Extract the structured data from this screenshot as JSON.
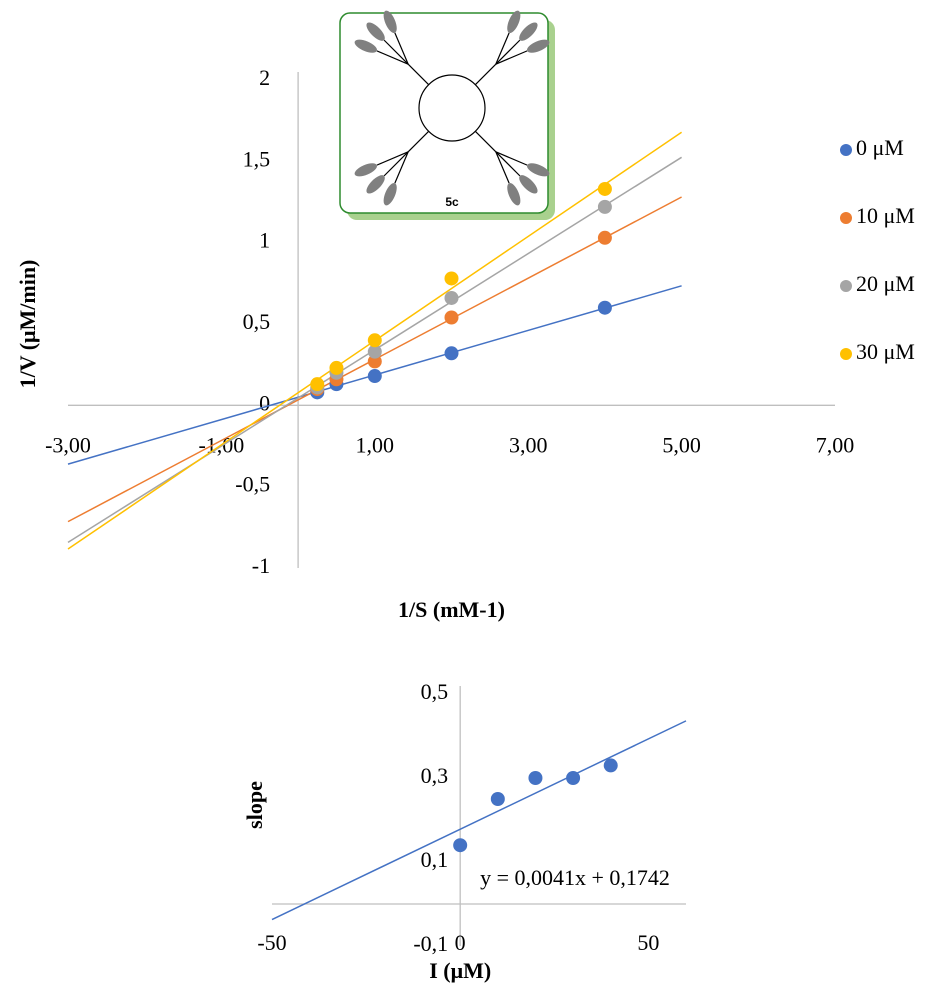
{
  "chart_data": [
    {
      "type": "scatter",
      "inset_label": "5c",
      "x": [
        0.25,
        0.5,
        1,
        2,
        4
      ],
      "series": [
        {
          "name": "0 μM",
          "color": "#4472c4",
          "values": [
            0.08,
            0.13,
            0.18,
            0.32,
            0.6
          ]
        },
        {
          "name": "10 μM",
          "color": "#ed7d31",
          "values": [
            0.1,
            0.16,
            0.27,
            0.54,
            1.03
          ]
        },
        {
          "name": "20 μM",
          "color": "#a5a5a5",
          "values": [
            0.11,
            0.2,
            0.33,
            0.66,
            1.22
          ]
        },
        {
          "name": "30 μM",
          "color": "#ffc000",
          "values": [
            0.13,
            0.23,
            0.4,
            0.78,
            1.33
          ]
        }
      ],
      "xlim": [
        -3,
        7
      ],
      "xticks": [
        {
          "value": -3,
          "label": "-3,00"
        },
        {
          "value": -1,
          "label": "-1,00"
        },
        {
          "value": 1,
          "label": "1,00"
        },
        {
          "value": 3,
          "label": "3,00"
        },
        {
          "value": 5,
          "label": "5,00"
        },
        {
          "value": 7,
          "label": "7,00"
        }
      ],
      "ylim": [
        -1,
        2
      ],
      "yticks": [
        -1,
        {
          "value": -0.5,
          "label": "-0,5"
        },
        0,
        {
          "value": 0.5,
          "label": "0,5"
        },
        1,
        {
          "value": 1.5,
          "label": "1,5"
        },
        2
      ],
      "x_label": "1/S (mM-1)",
      "y_label": "1/V (μM/min)",
      "trendline": true,
      "trendline_x": [
        -3,
        5
      ],
      "legend": "right",
      "grid": false
    },
    {
      "type": "scatter",
      "x": [
        0,
        10,
        20,
        30,
        40
      ],
      "series": [
        {
          "color": "#4472c4",
          "values": [
            0.14,
            0.25,
            0.3,
            0.3,
            0.33
          ]
        }
      ],
      "xlim": [
        -50,
        60
      ],
      "xticks": [
        -50,
        0,
        50
      ],
      "ylim": [
        -0.1,
        0.5
      ],
      "yticks": [
        {
          "value": -0.1,
          "label": "-0,1"
        },
        {
          "value": 0.1,
          "label": "0,1"
        },
        {
          "value": 0.3,
          "label": "0,3"
        },
        {
          "value": 0.5,
          "label": "0,5"
        }
      ],
      "x_label": "I (μM)",
      "y_label": "slope",
      "annotation": "y = 0,0041x + 0,1742",
      "trendline": true,
      "grid": false
    }
  ]
}
